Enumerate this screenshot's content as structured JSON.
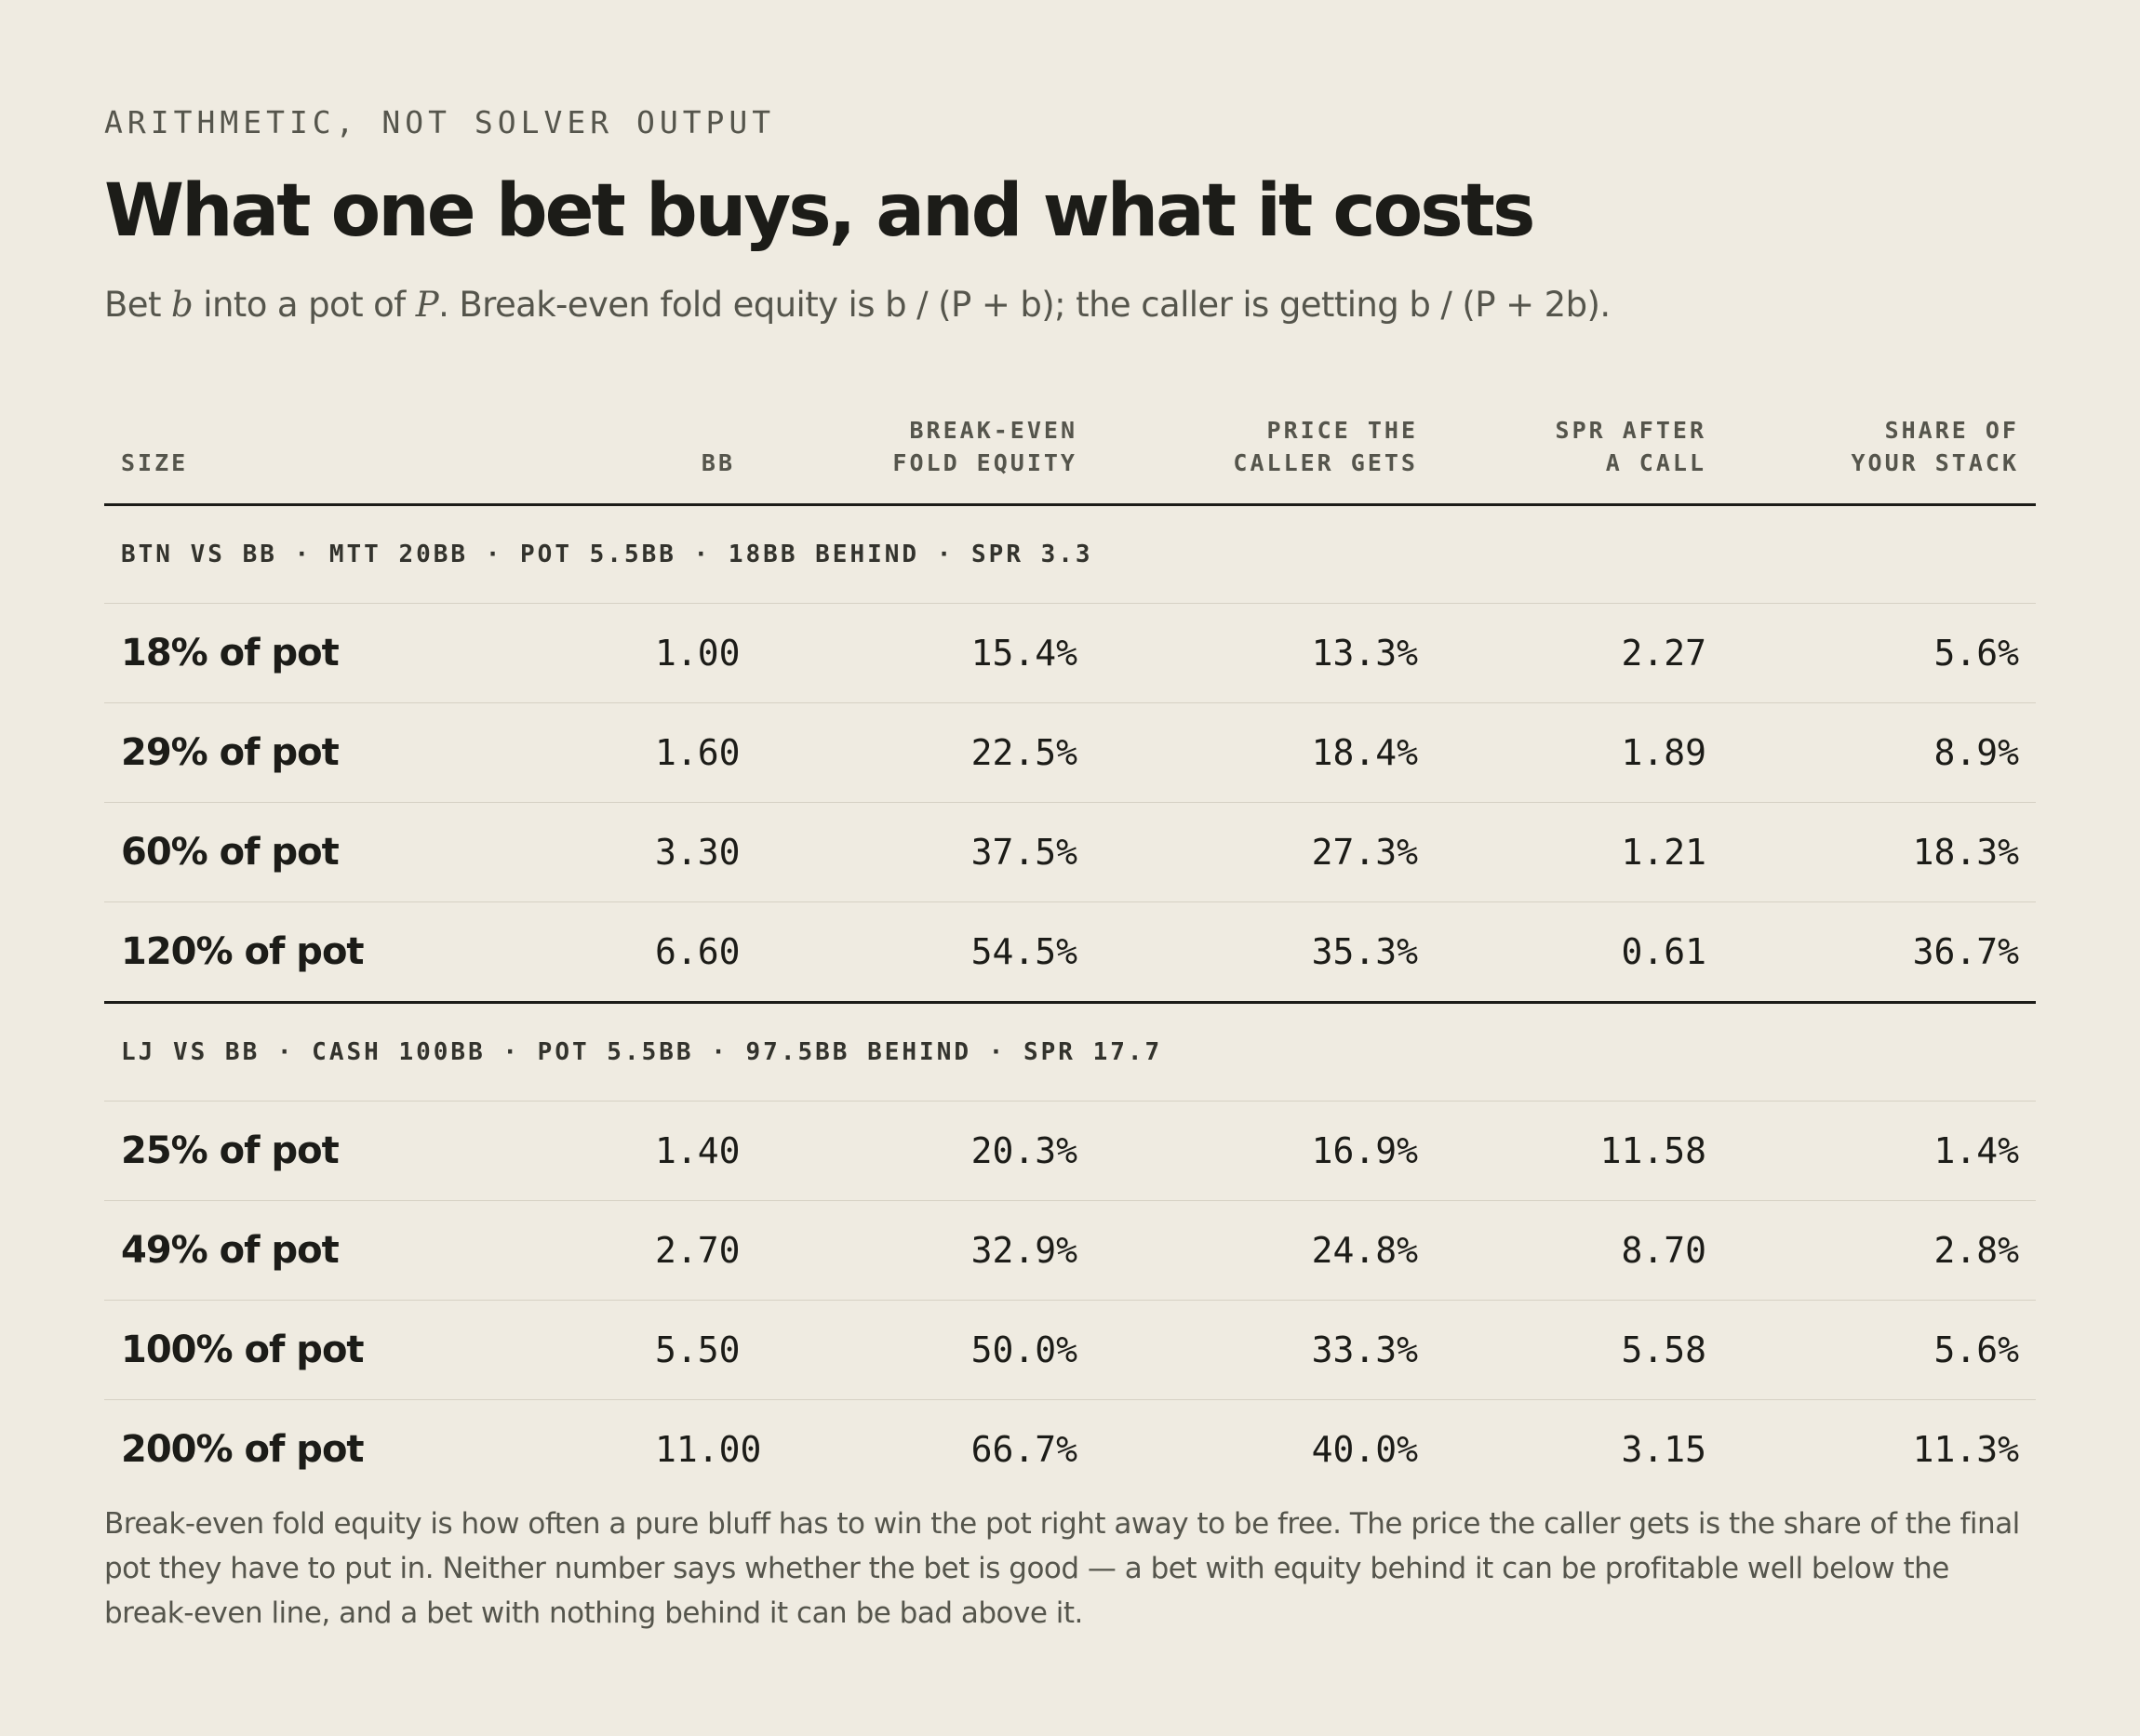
{
  "eyebrow": "ARITHMETIC, NOT SOLVER OUTPUT",
  "title": "What one bet buys, and what it costs",
  "subtitle": {
    "t1": "Bet ",
    "b": "b",
    "t2": " into a pot of ",
    "p": "P",
    "t3": ". Break-even fold equity is b / (P + b); the caller is getting b / (P + 2b)."
  },
  "headers": {
    "size": "SIZE",
    "bb": "BB",
    "fold_l1": "BREAK-EVEN",
    "fold_l2": "FOLD EQUITY",
    "price_l1": "PRICE THE",
    "price_l2": "CALLER GETS",
    "spr_l1": "SPR AFTER",
    "spr_l2": "A CALL",
    "share_l1": "SHARE OF",
    "share_l2": "YOUR STACK"
  },
  "groups": [
    {
      "label": "BTN VS BB · MTT 20BB · POT 5.5BB · 18BB BEHIND · SPR 3.3",
      "rows": [
        {
          "size": "18% of pot",
          "bb": "1.00",
          "fold": "15.4%",
          "price": "13.3%",
          "spr": "2.27",
          "share": "5.6%"
        },
        {
          "size": "29% of pot",
          "bb": "1.60",
          "fold": "22.5%",
          "price": "18.4%",
          "spr": "1.89",
          "share": "8.9%"
        },
        {
          "size": "60% of pot",
          "bb": "3.30",
          "fold": "37.5%",
          "price": "27.3%",
          "spr": "1.21",
          "share": "18.3%"
        },
        {
          "size": "120% of pot",
          "bb": "6.60",
          "fold": "54.5%",
          "price": "35.3%",
          "spr": "0.61",
          "share": "36.7%"
        }
      ]
    },
    {
      "label": "LJ VS BB · CASH 100BB · POT 5.5BB · 97.5BB BEHIND · SPR 17.7",
      "rows": [
        {
          "size": "25% of pot",
          "bb": "1.40",
          "fold": "20.3%",
          "price": "16.9%",
          "spr": "11.58",
          "share": "1.4%"
        },
        {
          "size": "49% of pot",
          "bb": "2.70",
          "fold": "32.9%",
          "price": "24.8%",
          "spr": "8.70",
          "share": "2.8%"
        },
        {
          "size": "100% of pot",
          "bb": "5.50",
          "fold": "50.0%",
          "price": "33.3%",
          "spr": "5.58",
          "share": "5.6%"
        },
        {
          "size": "200% of pot",
          "bb": "11.00",
          "fold": "66.7%",
          "price": "40.0%",
          "spr": "3.15",
          "share": "11.3%"
        }
      ]
    }
  ],
  "notes": "Break-even fold equity is how often a pure bluff has to win the pot right away to be free. The price the caller gets is the share of the final pot they have to put in. Neither number says whether the bet is good — a bet with equity behind it can be profitable well below the break-even line, and a bet with nothing behind it can be bad above it."
}
